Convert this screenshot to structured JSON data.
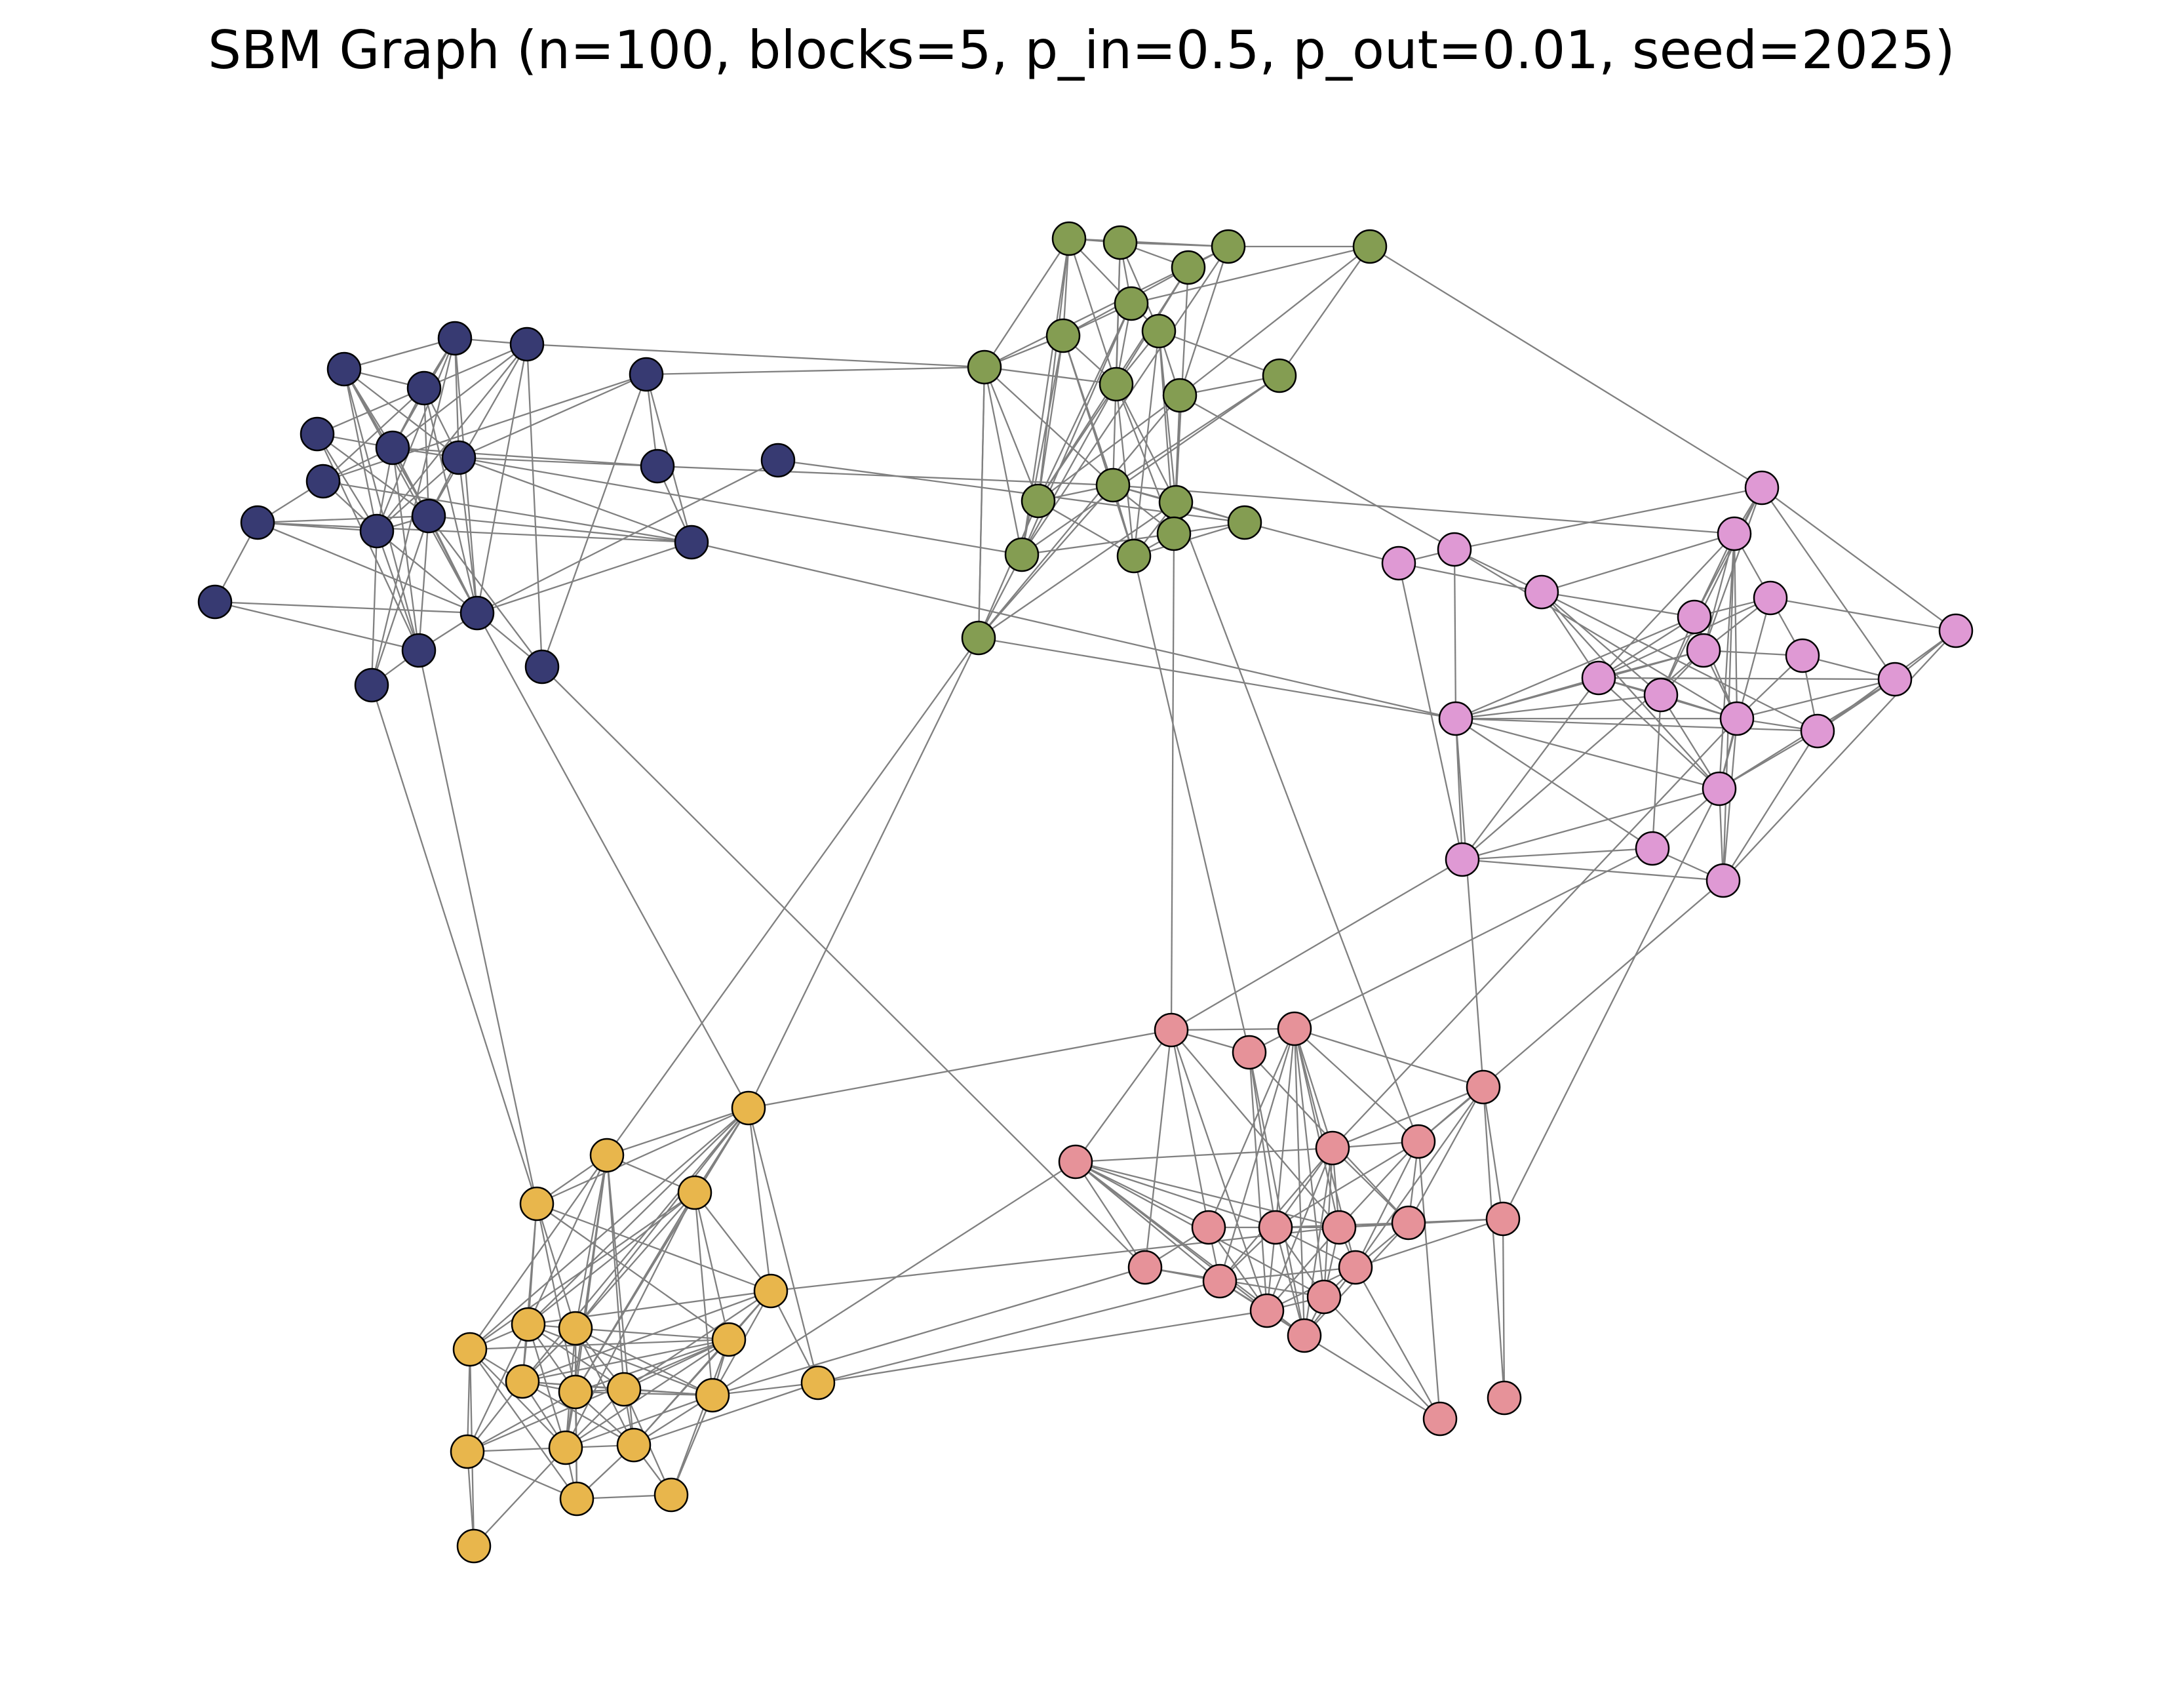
{
  "title": "SBM Graph (n=100, blocks=5, p_in=0.5, p_out=0.01, seed=2025)",
  "colors": {
    "edge": "#808080",
    "node_stroke": "#000000",
    "blocks": [
      "#373a72",
      "#849d52",
      "#df99d4",
      "#e69299",
      "#e8b64c"
    ]
  }
}
